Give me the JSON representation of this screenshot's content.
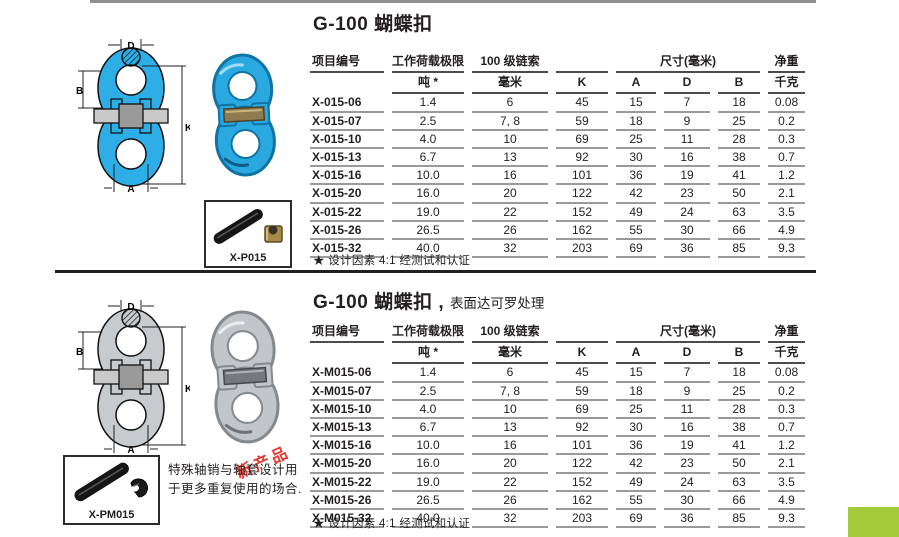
{
  "colors": {
    "diagram_blue": "#2eaee6",
    "diagram_gray": "#c7cbcd",
    "corner_green": "#a4cb3a",
    "stamp_red": "#e03a30"
  },
  "section1": {
    "title": "G-100 蝴蝶扣",
    "inset_label": "X-P015",
    "footnote": "★ 设计因素 4:1 经测试和认证",
    "diagram_labels": {
      "d": "D",
      "b": "B",
      "k": "K",
      "a": "A"
    }
  },
  "section2": {
    "title": "G-100 蝴蝶扣 ,",
    "subtitle": "表面达可罗处理",
    "inset_label": "X-PM015",
    "stamp": "新产品",
    "description": "特殊轴销与轴套设计用于更多重复使用的场合.",
    "footnote": "★ 设计因素 4:1 经测试和认证",
    "diagram_labels": {
      "d": "D",
      "b": "B",
      "k": "K",
      "a": "A"
    }
  },
  "table_headers": {
    "item": "项目编号",
    "wll": "工作荷载极限",
    "chain": "100 级链索",
    "dim": "尺寸(毫米)",
    "weight": "净重",
    "sub_tons": "吨 *",
    "sub_mm": "毫米",
    "sub_k": "K",
    "sub_a": "A",
    "sub_d": "D",
    "sub_b": "B",
    "sub_kg": "千克"
  },
  "table1_rows": [
    [
      "X-015-06",
      "1.4",
      "6",
      "45",
      "15",
      "7",
      "18",
      "0.08"
    ],
    [
      "X-015-07",
      "2.5",
      "7, 8",
      "59",
      "18",
      "9",
      "25",
      "0.2"
    ],
    [
      "X-015-10",
      "4.0",
      "10",
      "69",
      "25",
      "11",
      "28",
      "0.3"
    ],
    [
      "X-015-13",
      "6.7",
      "13",
      "92",
      "30",
      "16",
      "38",
      "0.7"
    ],
    [
      "X-015-16",
      "10.0",
      "16",
      "101",
      "36",
      "19",
      "41",
      "1.2"
    ],
    [
      "X-015-20",
      "16.0",
      "20",
      "122",
      "42",
      "23",
      "50",
      "2.1"
    ],
    [
      "X-015-22",
      "19.0",
      "22",
      "152",
      "49",
      "24",
      "63",
      "3.5"
    ],
    [
      "X-015-26",
      "26.5",
      "26",
      "162",
      "55",
      "30",
      "66",
      "4.9"
    ],
    [
      "X-015-32",
      "40.0",
      "32",
      "203",
      "69",
      "36",
      "85",
      "9.3"
    ]
  ],
  "table2_rows": [
    [
      "X-M015-06",
      "1.4",
      "6",
      "45",
      "15",
      "7",
      "18",
      "0.08"
    ],
    [
      "X-M015-07",
      "2.5",
      "7, 8",
      "59",
      "18",
      "9",
      "25",
      "0.2"
    ],
    [
      "X-M015-10",
      "4.0",
      "10",
      "69",
      "25",
      "11",
      "28",
      "0.3"
    ],
    [
      "X-M015-13",
      "6.7",
      "13",
      "92",
      "30",
      "16",
      "38",
      "0.7"
    ],
    [
      "X-M015-16",
      "10.0",
      "16",
      "101",
      "36",
      "19",
      "41",
      "1.2"
    ],
    [
      "X-M015-20",
      "16.0",
      "20",
      "122",
      "42",
      "23",
      "50",
      "2.1"
    ],
    [
      "X-M015-22",
      "19.0",
      "22",
      "152",
      "49",
      "24",
      "63",
      "3.5"
    ],
    [
      "X-M015-26",
      "26.5",
      "26",
      "162",
      "55",
      "30",
      "66",
      "4.9"
    ],
    [
      "X-M015-32",
      "40.0",
      "32",
      "203",
      "69",
      "36",
      "85",
      "9.3"
    ]
  ]
}
